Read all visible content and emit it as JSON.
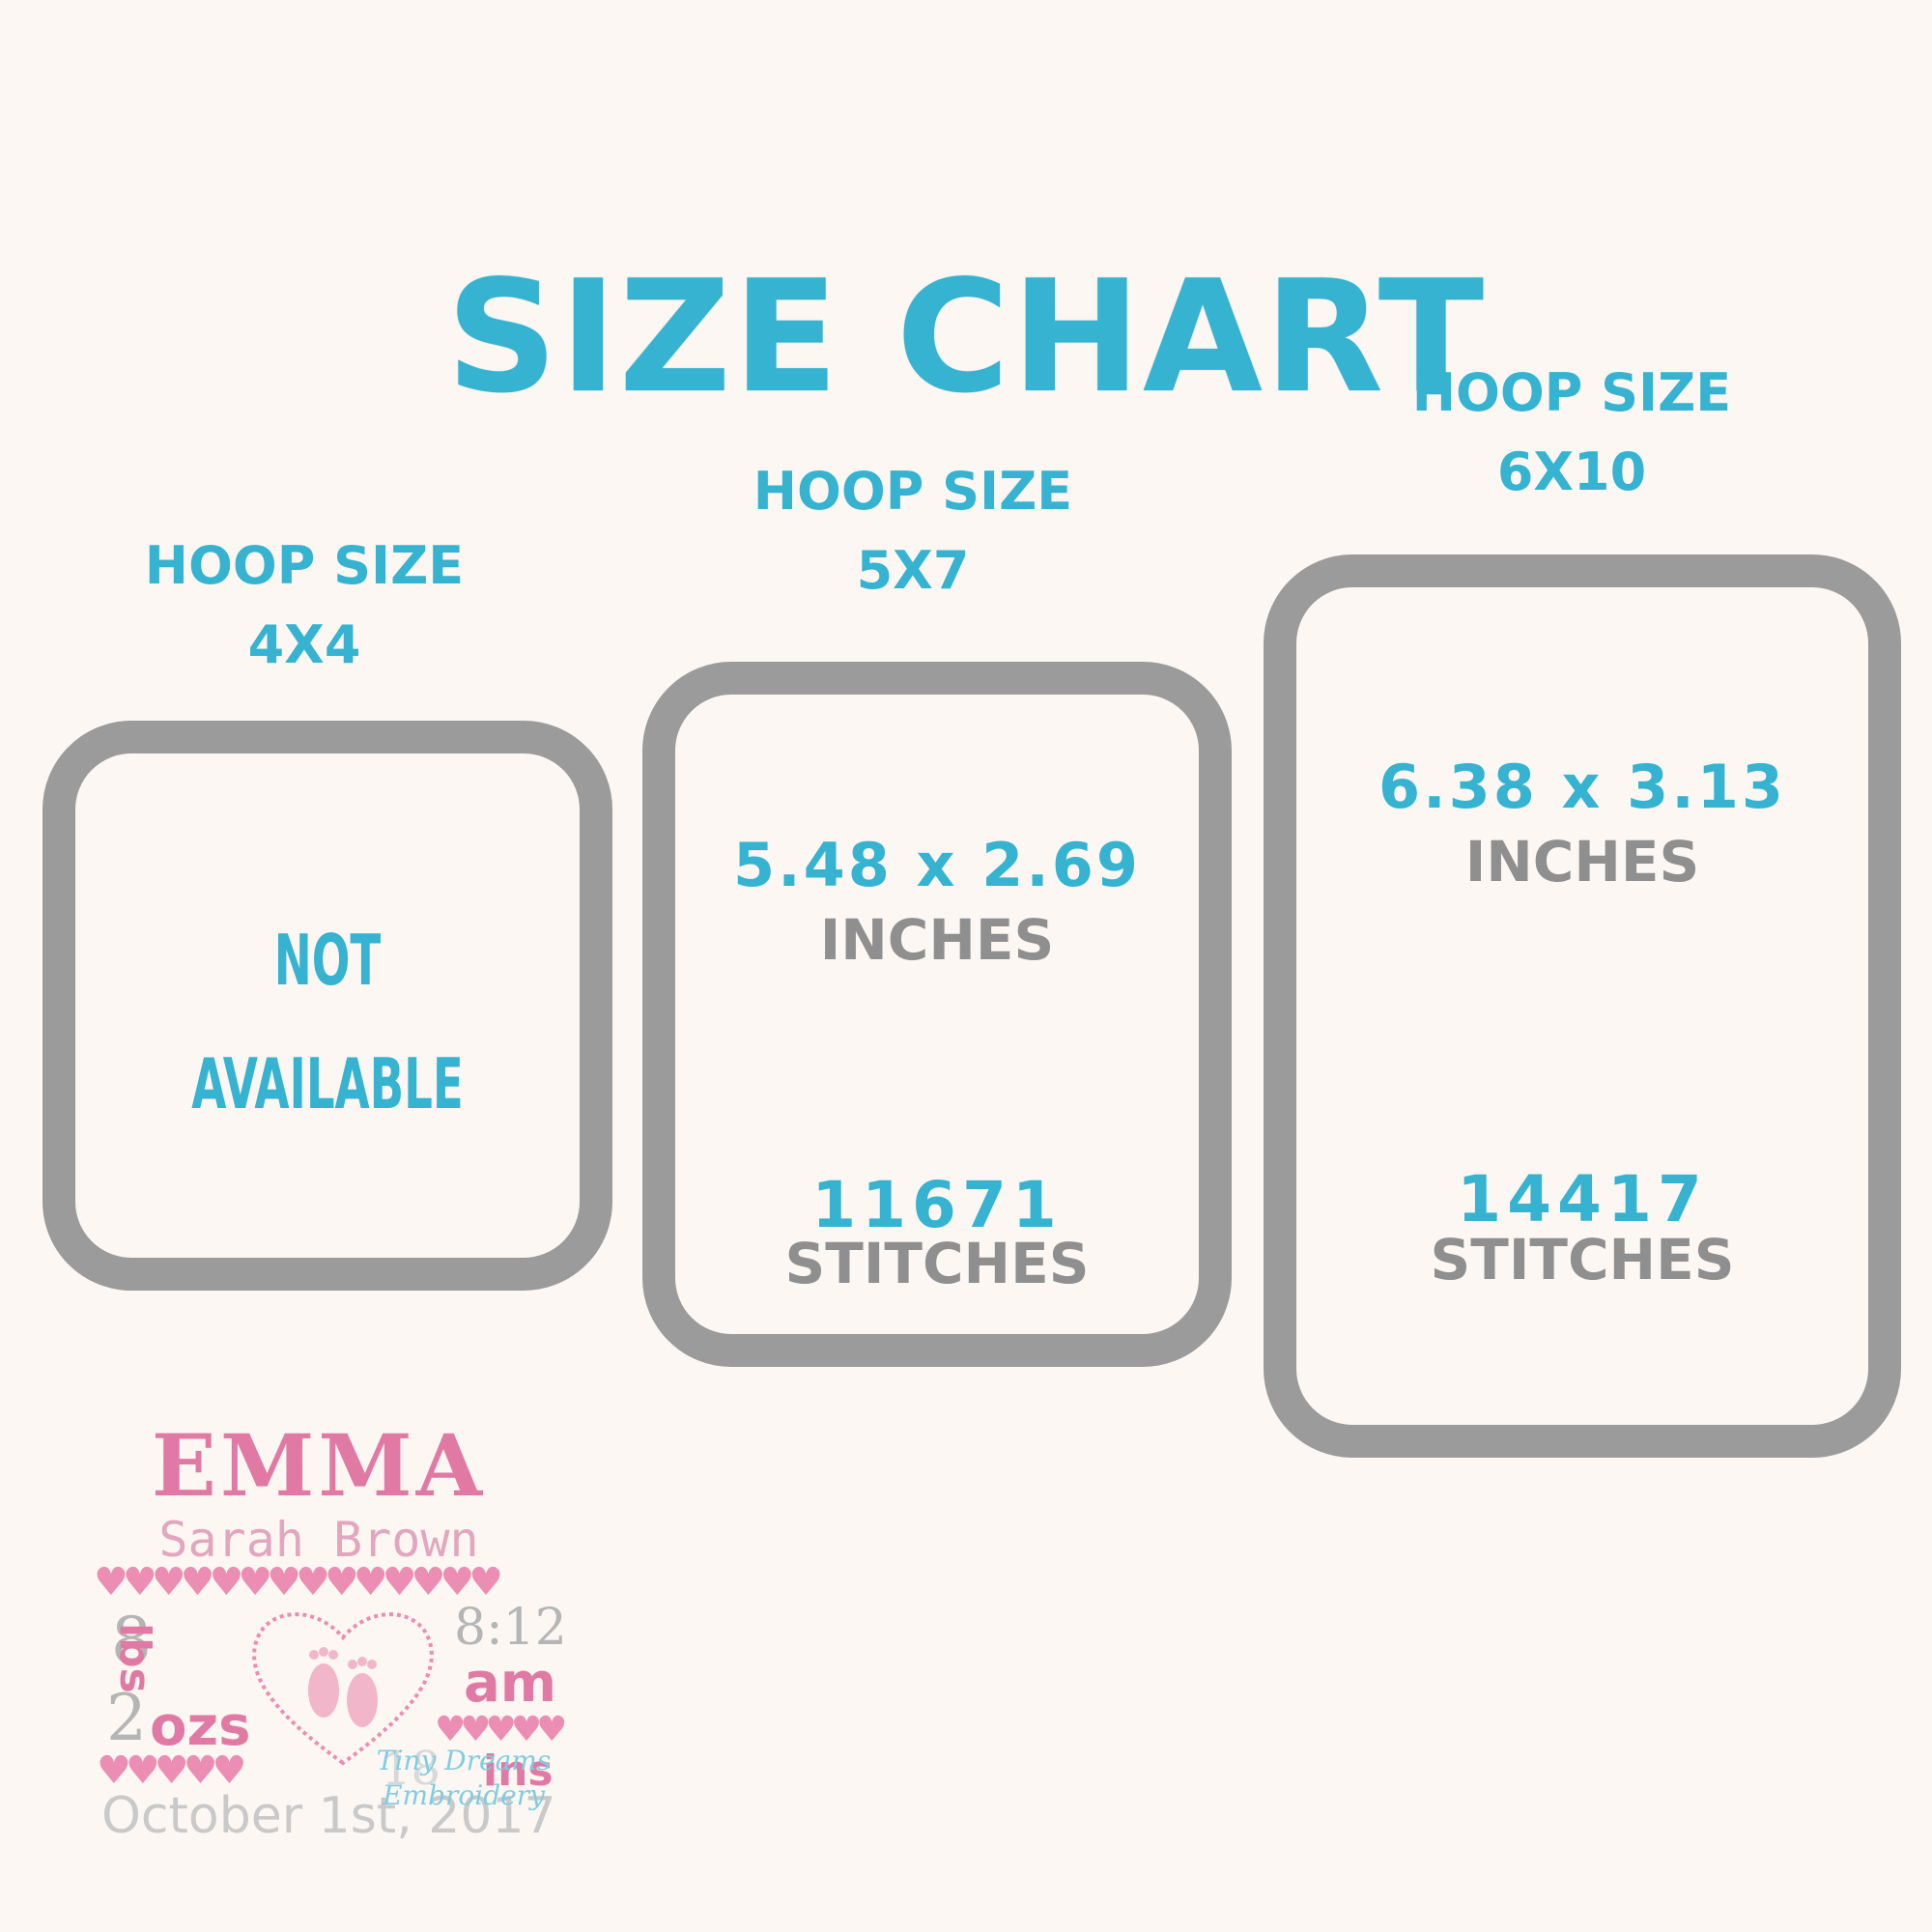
{
  "title": "SIZE CHART",
  "hoops": [
    {
      "label": "HOOP SIZE",
      "size": "4X4",
      "not_available_line1": "NOT",
      "not_available_line2": "AVAILABLE"
    },
    {
      "label": "HOOP SIZE",
      "size": "5X7",
      "dimensions": "5.48 x 2.69",
      "dim_unit": "INCHES",
      "stitches": "11671",
      "stitch_unit": "STITCHES"
    },
    {
      "label": "HOOP SIZE",
      "size": "6X10",
      "dimensions": "6.38 x 3.13",
      "dim_unit": "INCHES",
      "stitches": "14417",
      "stitch_unit": "STITCHES"
    }
  ],
  "sample": {
    "name": "EMMA",
    "middle_last": "Sarah Brown",
    "weight_lbs": "8",
    "lbs_label": "lbs",
    "weight_ozs": "2",
    "ozs_label": "ozs",
    "time": "8:12",
    "ampm": "am",
    "length": "18",
    "length_unit": "ins",
    "date": "October 1st, 2017",
    "watermark": "Tiny Dreams Embroidery",
    "heart_icon": "heart-icon",
    "footprint_icon": "baby-footprints-icon"
  },
  "colors": {
    "accent_blue": "#35b3d1",
    "hoop_gray": "#9b9b9b",
    "text_gray": "#8f8f8f",
    "pink": "#e07aa5"
  }
}
